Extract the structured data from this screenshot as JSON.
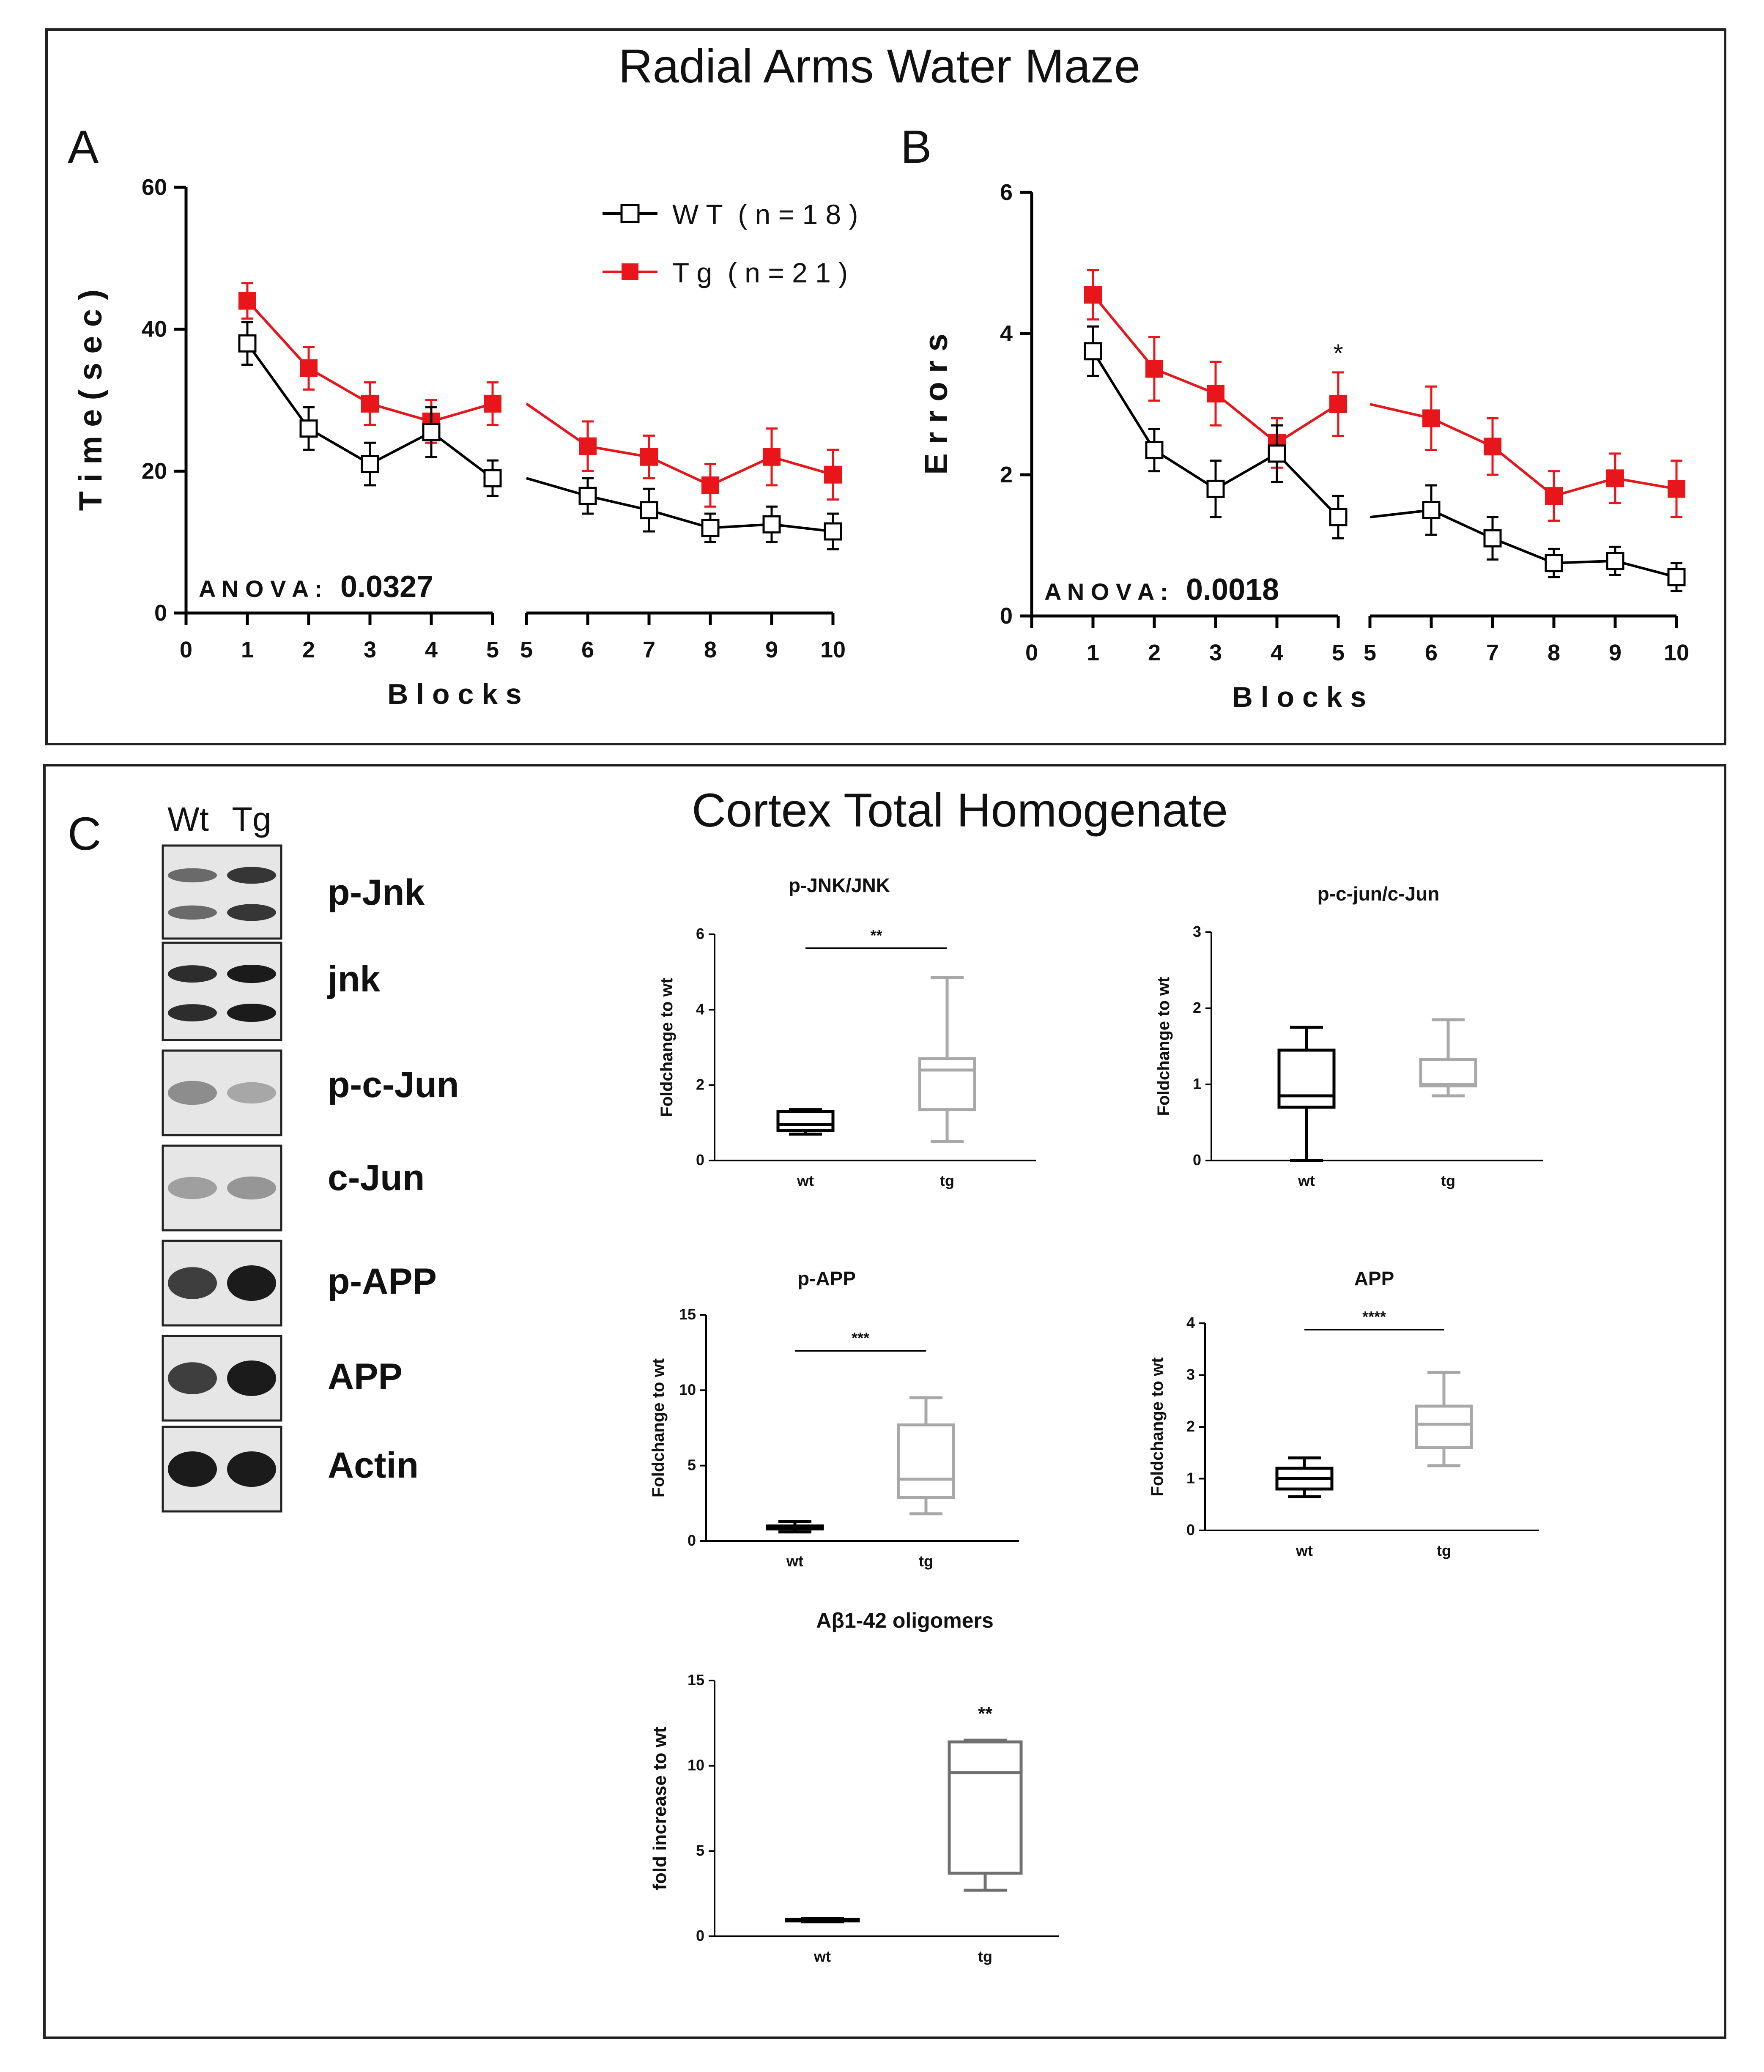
{
  "figure": {
    "panel_ab_title": "Radial Arms Water Maze",
    "panel_c_title": "Cortex Total Homogenate",
    "panel_labels": [
      "A",
      "B",
      "C"
    ]
  },
  "legend": {
    "wt_label": "W T  ( n = 1 8 )",
    "tg_label": "T g  ( n = 2 1 )"
  },
  "colors": {
    "wt": "#000000",
    "tg": "#e8161b",
    "box_tg_light": "#a8a8a8",
    "box_tg_dark": "#707070"
  },
  "blot": {
    "lanes": [
      "Wt",
      "Tg"
    ],
    "rows": [
      {
        "label": "p-Jnk",
        "bands": 2,
        "intensity": [
          0.55,
          0.85
        ]
      },
      {
        "label": "jnk",
        "bands": 2,
        "intensity": [
          0.9,
          1.0
        ]
      },
      {
        "label": "p-c-Jun",
        "bands": 1,
        "intensity": [
          0.35,
          0.2
        ]
      },
      {
        "label": "c-Jun",
        "bands": 1,
        "intensity": [
          0.25,
          0.3
        ]
      },
      {
        "label": "p-APP",
        "bands": 1,
        "intensity": [
          0.8,
          1.0
        ]
      },
      {
        "label": "APP",
        "bands": 1,
        "intensity": [
          0.8,
          1.0
        ]
      },
      {
        "label": "Actin",
        "bands": 1,
        "intensity": [
          1.0,
          1.0
        ]
      }
    ]
  },
  "chart_data": [
    {
      "id": "A",
      "type": "line",
      "ylabel": "T i m e  ( s e c )",
      "xlabel": "B l o c k s",
      "ylim": [
        0,
        60
      ],
      "yticks": [
        0,
        20,
        40,
        60
      ],
      "xticks_left": [
        "0",
        "1",
        "2",
        "3",
        "4",
        "5"
      ],
      "xticks_right": [
        "5",
        "6",
        "7",
        "8",
        "9",
        "10"
      ],
      "anova_label": "A N O V A :",
      "anova_value": "0.0327",
      "series": [
        {
          "name": "WT (n=18)",
          "x": [
            1,
            2,
            3,
            4,
            5,
            6,
            7,
            8,
            9,
            10
          ],
          "values": [
            38,
            26,
            21,
            25.5,
            19,
            16.5,
            14.5,
            12,
            12.5,
            11.5
          ],
          "err": [
            3,
            3,
            3,
            3.5,
            2.5,
            2.5,
            3,
            2,
            2.5,
            2.5
          ]
        },
        {
          "name": "Tg (n=21)",
          "x": [
            1,
            2,
            3,
            4,
            5,
            6,
            7,
            8,
            9,
            10
          ],
          "values": [
            44,
            34.5,
            29.5,
            27,
            29.5,
            23.5,
            22,
            18,
            22,
            19.5
          ],
          "err": [
            2.5,
            3,
            3,
            3,
            3,
            3.5,
            3,
            3,
            4,
            3.5
          ]
        }
      ]
    },
    {
      "id": "B",
      "type": "line",
      "ylabel": "E r r o r s",
      "xlabel": "B l o c k s",
      "ylim": [
        0,
        6
      ],
      "yticks": [
        0,
        2,
        4,
        6
      ],
      "xticks_left": [
        "0",
        "1",
        "2",
        "3",
        "4",
        "5"
      ],
      "xticks_right": [
        "5",
        "6",
        "7",
        "8",
        "9",
        "10"
      ],
      "anova_label": "A N O V A :",
      "anova_value": "0.0018",
      "annotation": "*",
      "series": [
        {
          "name": "WT (n=18)",
          "x": [
            1,
            2,
            3,
            4,
            5,
            6,
            7,
            8,
            9,
            10
          ],
          "values": [
            3.75,
            2.35,
            1.8,
            2.3,
            1.4,
            1.5,
            1.1,
            0.75,
            0.78,
            0.55
          ],
          "err": [
            0.35,
            0.3,
            0.4,
            0.4,
            0.3,
            0.35,
            0.3,
            0.2,
            0.2,
            0.2
          ]
        },
        {
          "name": "Tg (n=21)",
          "x": [
            1,
            2,
            3,
            4,
            5,
            6,
            7,
            8,
            9,
            10
          ],
          "values": [
            4.55,
            3.5,
            3.15,
            2.45,
            3.0,
            2.8,
            2.4,
            1.7,
            1.95,
            1.8
          ],
          "err": [
            0.35,
            0.45,
            0.45,
            0.35,
            0.45,
            0.45,
            0.4,
            0.35,
            0.35,
            0.4
          ]
        }
      ]
    },
    {
      "id": "pjnk",
      "type": "box",
      "title": "p-JNK/JNK",
      "ylabel": "Foldchange to wt",
      "ylim": [
        0,
        6
      ],
      "yticks": [
        "0",
        "2",
        "4",
        "6"
      ],
      "categories": [
        "wt",
        "tg"
      ],
      "sig": "**",
      "boxes": [
        {
          "min": 0.7,
          "q1": 0.8,
          "median": 0.95,
          "q3": 1.3,
          "max": 1.35
        },
        {
          "min": 0.5,
          "q1": 1.35,
          "median": 2.4,
          "q3": 2.7,
          "max": 4.85
        }
      ]
    },
    {
      "id": "pcjun",
      "type": "box",
      "title": "p-c-jun/c-Jun",
      "ylabel": "Foldchange to wt",
      "ylim": [
        0,
        3
      ],
      "yticks": [
        "0",
        "1",
        "2",
        "3"
      ],
      "categories": [
        "wt",
        "tg"
      ],
      "sig": "",
      "boxes": [
        {
          "min": 0.0,
          "q1": 0.7,
          "median": 0.85,
          "q3": 1.45,
          "max": 1.75
        },
        {
          "min": 0.85,
          "q1": 0.98,
          "median": 1.0,
          "q3": 1.33,
          "max": 1.85
        }
      ]
    },
    {
      "id": "papp",
      "type": "box",
      "title": "p-APP",
      "ylabel": "Foldchange to wt",
      "ylim": [
        0,
        15
      ],
      "yticks": [
        "0",
        "5",
        "10",
        "15"
      ],
      "categories": [
        "wt",
        "tg"
      ],
      "sig": "***",
      "boxes": [
        {
          "min": 0.6,
          "q1": 0.8,
          "median": 0.9,
          "q3": 1.0,
          "max": 1.3
        },
        {
          "min": 1.8,
          "q1": 2.9,
          "median": 4.1,
          "q3": 7.7,
          "max": 9.5
        }
      ]
    },
    {
      "id": "app",
      "type": "box",
      "title": "APP",
      "ylabel": "Foldchange to wt",
      "ylim": [
        0,
        4
      ],
      "yticks": [
        "0",
        "1",
        "2",
        "3",
        "4"
      ],
      "categories": [
        "wt",
        "tg"
      ],
      "sig": "****",
      "boxes": [
        {
          "min": 0.65,
          "q1": 0.8,
          "median": 1.0,
          "q3": 1.2,
          "max": 1.4
        },
        {
          "min": 1.25,
          "q1": 1.6,
          "median": 2.05,
          "q3": 2.4,
          "max": 3.05
        }
      ]
    },
    {
      "id": "abeta",
      "type": "box",
      "title": "Aβ1-42 oligomers",
      "ylabel": "fold increase to wt",
      "ylim": [
        0,
        15
      ],
      "yticks": [
        "0",
        "5",
        "10",
        "15"
      ],
      "categories": [
        "wt",
        "tg"
      ],
      "sig": "**",
      "boxes": [
        {
          "min": 0.85,
          "q1": 0.9,
          "median": 0.95,
          "q3": 1.0,
          "max": 1.05
        },
        {
          "min": 2.7,
          "q1": 3.7,
          "median": 9.6,
          "q3": 11.4,
          "max": 11.5
        }
      ]
    }
  ]
}
